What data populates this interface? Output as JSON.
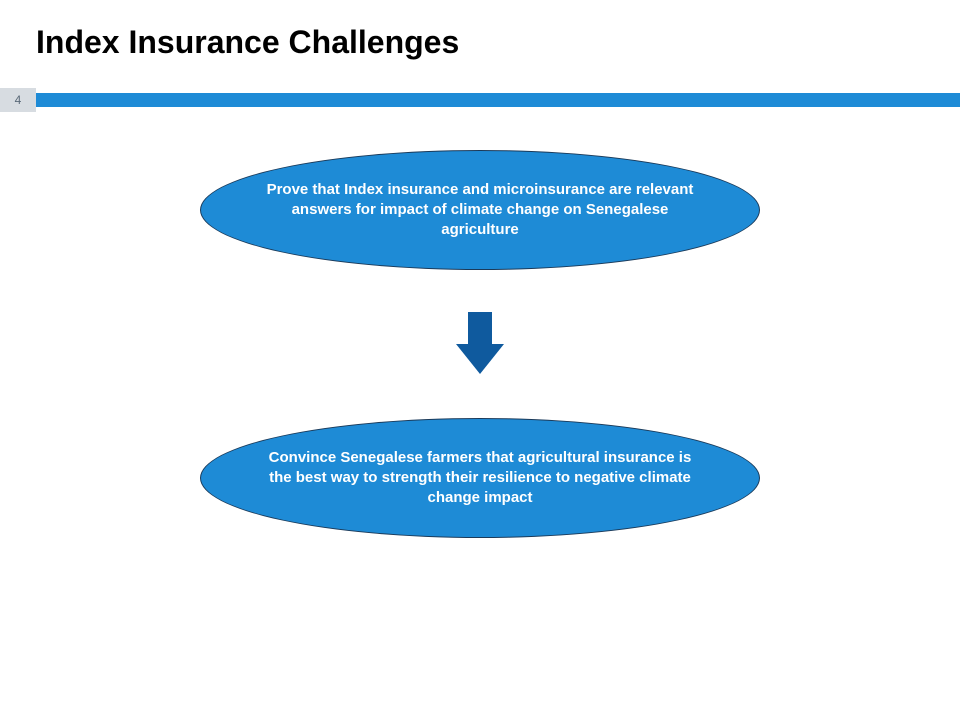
{
  "title": "Index Insurance Challenges",
  "page_number": "4",
  "accent_color": "#1e8bd6",
  "accent_dark": "#1476bb",
  "page_tab_bg": "#d7dce1",
  "page_tab_text": "#5a6a78",
  "arrow_color": "#0f5a9e",
  "bubble1": {
    "text": "Prove that Index insurance and microinsurance are relevant answers for impact of climate change on Senegalese agriculture",
    "bg": "#1e8bd6",
    "text_color": "#ffffff"
  },
  "bubble2": {
    "text": "Convince Senegalese farmers that agricultural insurance is the best way to strength their resilience to negative climate change impact",
    "bg": "#1e8bd6",
    "text_color": "#ffffff"
  }
}
